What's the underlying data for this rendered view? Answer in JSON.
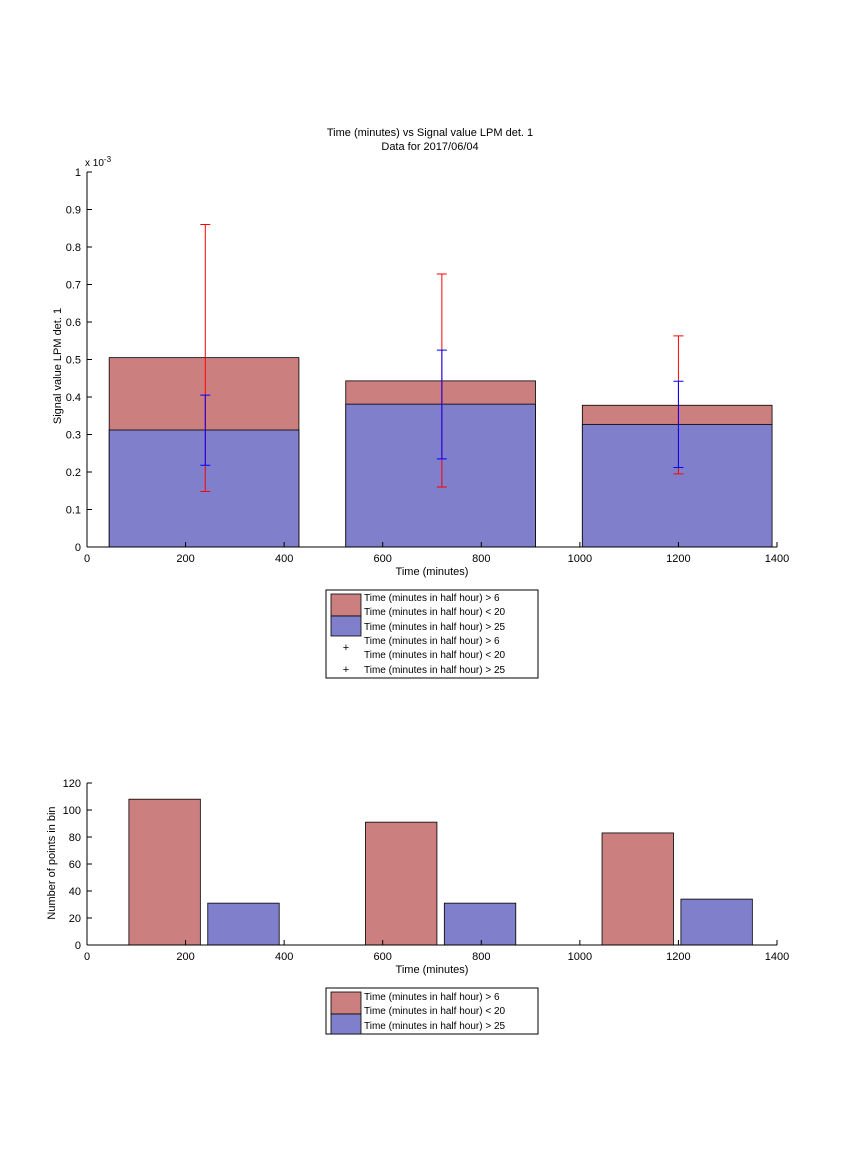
{
  "chart_data": [
    {
      "type": "bar",
      "title": "Time (minutes) vs Signal value LPM det. 1",
      "subtitle": "Data for 2017/06/04",
      "xlabel": "Time (minutes)",
      "ylabel": "Signal value LPM det. 1",
      "y_exponent_label": "x 10",
      "y_exponent_power": "-3",
      "xlim": [
        0,
        1400
      ],
      "ylim": [
        0,
        0.001
      ],
      "x_ticks": [
        0,
        200,
        400,
        600,
        800,
        1000,
        1200,
        1400
      ],
      "y_ticks": [
        0,
        0.0001,
        0.0002,
        0.0003,
        0.0004,
        0.0005,
        0.0006,
        0.0007,
        0.0008,
        0.0009,
        0.001
      ],
      "y_tick_labels": [
        "0",
        "0.1",
        "0.2",
        "0.3",
        "0.4",
        "0.5",
        "0.6",
        "0.7",
        "0.8",
        "0.9",
        "1"
      ],
      "grid": false,
      "bars": [
        {
          "x0": 45,
          "x1": 430,
          "red_top": 0.000505,
          "blue_top": 0.000312
        },
        {
          "x0": 525,
          "x1": 910,
          "red_top": 0.000443,
          "blue_top": 0.000381
        },
        {
          "x0": 1005,
          "x1": 1390,
          "red_top": 0.000378,
          "blue_top": 0.000327
        }
      ],
      "errorbars": [
        {
          "series": "red",
          "x": 240,
          "y": 0.000505,
          "low": 0.000148,
          "high": 0.00086
        },
        {
          "series": "blue",
          "x": 240,
          "y": 0.000312,
          "low": 0.000218,
          "high": 0.000405
        },
        {
          "series": "red",
          "x": 720,
          "y": 0.000443,
          "low": 0.00016,
          "high": 0.000728
        },
        {
          "series": "blue",
          "x": 720,
          "y": 0.000381,
          "low": 0.000235,
          "high": 0.000525
        },
        {
          "series": "red",
          "x": 1200,
          "y": 0.000378,
          "low": 0.000195,
          "high": 0.000563
        },
        {
          "series": "blue",
          "x": 1200,
          "y": 0.000327,
          "low": 0.000212,
          "high": 0.000442
        }
      ],
      "legend": {
        "placement": "below",
        "entries": [
          {
            "kind": "patch",
            "color": "#cb7f7f",
            "lines": [
              "Time (minutes in half hour) > 6",
              "Time (minutes in half hour) < 20"
            ]
          },
          {
            "kind": "patch",
            "color": "#7f7fcb",
            "lines": [
              "Time (minutes in half hour) > 25"
            ]
          },
          {
            "kind": "marker",
            "color": "#ff0000",
            "lines": [
              "Time (minutes in half hour) > 6",
              "Time (minutes in half hour) < 20"
            ]
          },
          {
            "kind": "marker",
            "color": "#0000ff",
            "lines": [
              "Time (minutes in half hour) > 25"
            ]
          }
        ]
      }
    },
    {
      "type": "bar",
      "xlabel": "Time (minutes)",
      "ylabel": "Number of points in bin",
      "xlim": [
        0,
        1400
      ],
      "ylim": [
        0,
        120
      ],
      "x_ticks": [
        0,
        200,
        400,
        600,
        800,
        1000,
        1200,
        1400
      ],
      "y_ticks": [
        0,
        20,
        40,
        60,
        80,
        100,
        120
      ],
      "grid": false,
      "bars": [
        {
          "x0": 85,
          "x1": 230,
          "value": 108,
          "series": "red"
        },
        {
          "x0": 245,
          "x1": 390,
          "value": 31,
          "series": "blue"
        },
        {
          "x0": 565,
          "x1": 710,
          "value": 91,
          "series": "red"
        },
        {
          "x0": 725,
          "x1": 870,
          "value": 31,
          "series": "blue"
        },
        {
          "x0": 1045,
          "x1": 1190,
          "value": 83,
          "series": "red"
        },
        {
          "x0": 1205,
          "x1": 1350,
          "value": 34,
          "series": "blue"
        }
      ],
      "legend": {
        "placement": "below",
        "entries": [
          {
            "kind": "patch",
            "color": "#cb7f7f",
            "lines": [
              "Time (minutes in half hour) > 6",
              "Time (minutes in half hour) < 20"
            ]
          },
          {
            "kind": "patch",
            "color": "#7f7fcb",
            "lines": [
              "Time (minutes in half hour) > 25"
            ]
          }
        ]
      }
    }
  ],
  "colors": {
    "red_bar": "#cb7f7f",
    "blue_bar": "#7f7fcb",
    "red_err": "#ff0000",
    "blue_err": "#0000ff"
  }
}
